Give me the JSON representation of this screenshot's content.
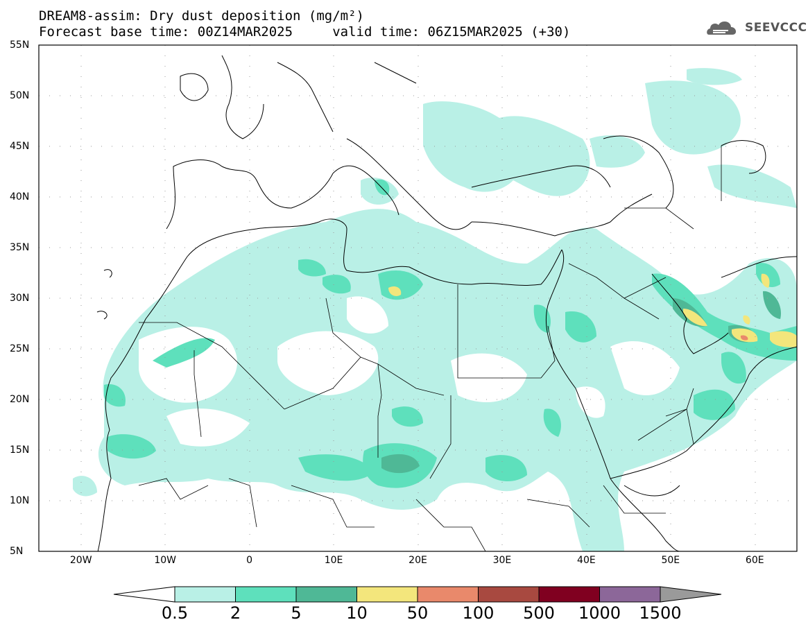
{
  "header": {
    "line1": "DREAM8-assim: Dry dust deposition (mg/m²)",
    "line2": "Forecast base time: 00Z14MAR2025     valid time: 06Z15MAR2025 (+30)",
    "logo_text": "SEEVCCC",
    "logo_icon": "cloud-icon"
  },
  "map": {
    "lat_labels": [
      "55N",
      "50N",
      "45N",
      "40N",
      "35N",
      "30N",
      "25N",
      "20N",
      "15N",
      "10N",
      "5N"
    ],
    "lon_labels": [
      "20W",
      "10W",
      "0",
      "10E",
      "20E",
      "30E",
      "40E",
      "50E",
      "60E"
    ],
    "extent": {
      "lon_min": -25,
      "lon_max": 65,
      "lat_min": 5,
      "lat_max": 55
    }
  },
  "colorbar": {
    "labels": [
      "0.5",
      "2",
      "5",
      "10",
      "50",
      "100",
      "500",
      "1000",
      "1500"
    ],
    "colors": [
      "#ffffff",
      "#b9f0e6",
      "#5ee0bc",
      "#4fb896",
      "#f3e67c",
      "#e9896b",
      "#a84940",
      "#800020",
      "#8c6799",
      "#9a9a9a"
    ]
  }
}
